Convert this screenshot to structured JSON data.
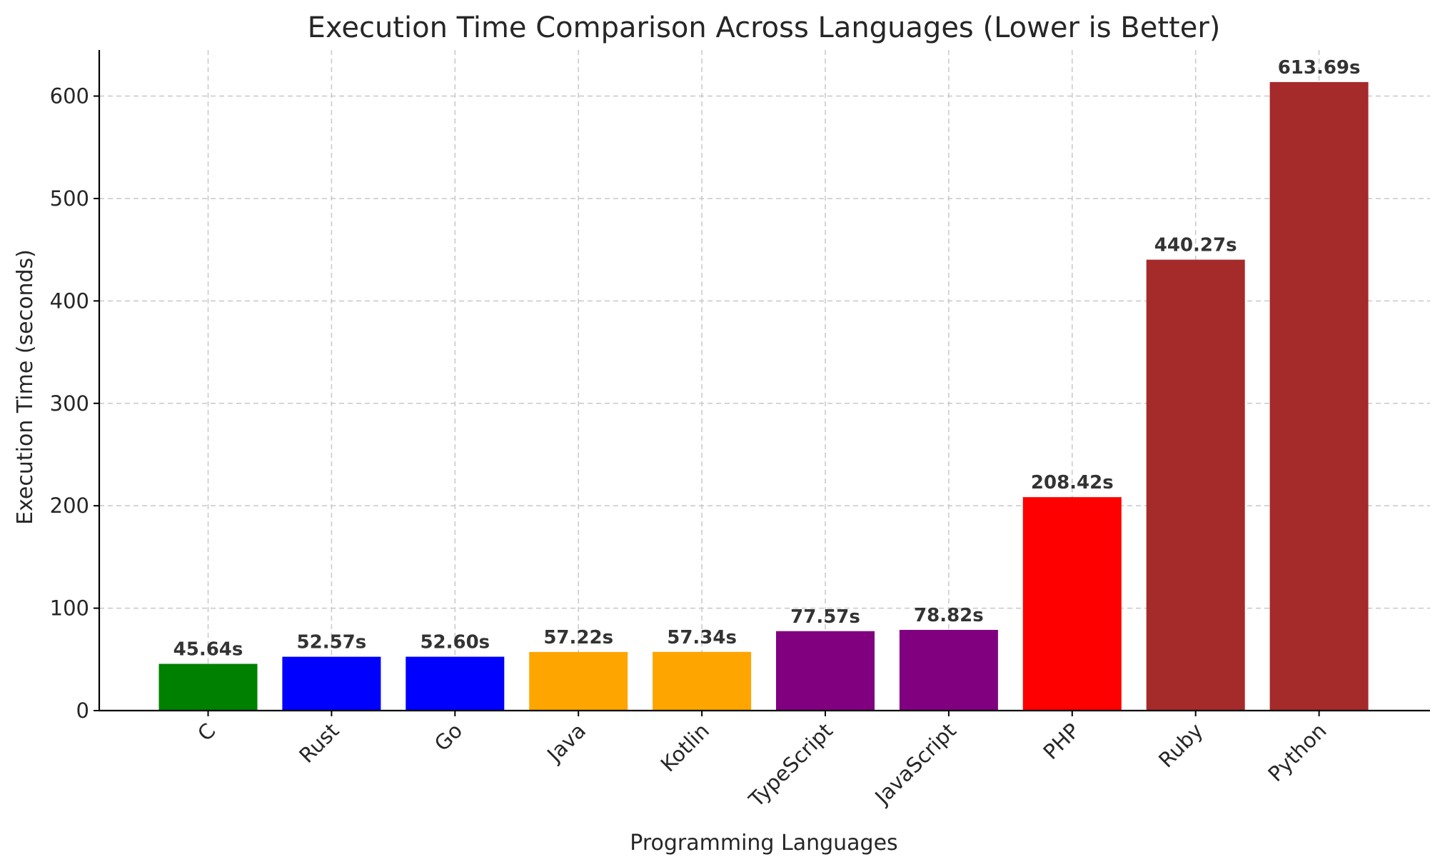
{
  "chart_data": {
    "type": "bar",
    "title": "Execution Time Comparison Across Languages (Lower is Better)",
    "xlabel": "Programming Languages",
    "ylabel": "Execution Time (seconds)",
    "ylim": [
      0,
      645
    ],
    "yticks": [
      0,
      100,
      200,
      300,
      400,
      500,
      600
    ],
    "grid": true,
    "categories": [
      "C",
      "Rust",
      "Go",
      "Java",
      "Kotlin",
      "TypeScript",
      "JavaScript",
      "PHP",
      "Ruby",
      "Python"
    ],
    "values": [
      45.64,
      52.57,
      52.6,
      57.22,
      57.34,
      77.57,
      78.82,
      208.42,
      440.27,
      613.69
    ],
    "value_labels": [
      "45.64s",
      "52.57s",
      "52.60s",
      "57.22s",
      "57.34s",
      "77.57s",
      "78.82s",
      "208.42s",
      "440.27s",
      "613.69s"
    ],
    "colors": [
      "#008000",
      "#0000ff",
      "#0000ff",
      "#ffa500",
      "#ffa500",
      "#800080",
      "#800080",
      "#ff0000",
      "#a52a2a",
      "#a52a2a"
    ]
  }
}
